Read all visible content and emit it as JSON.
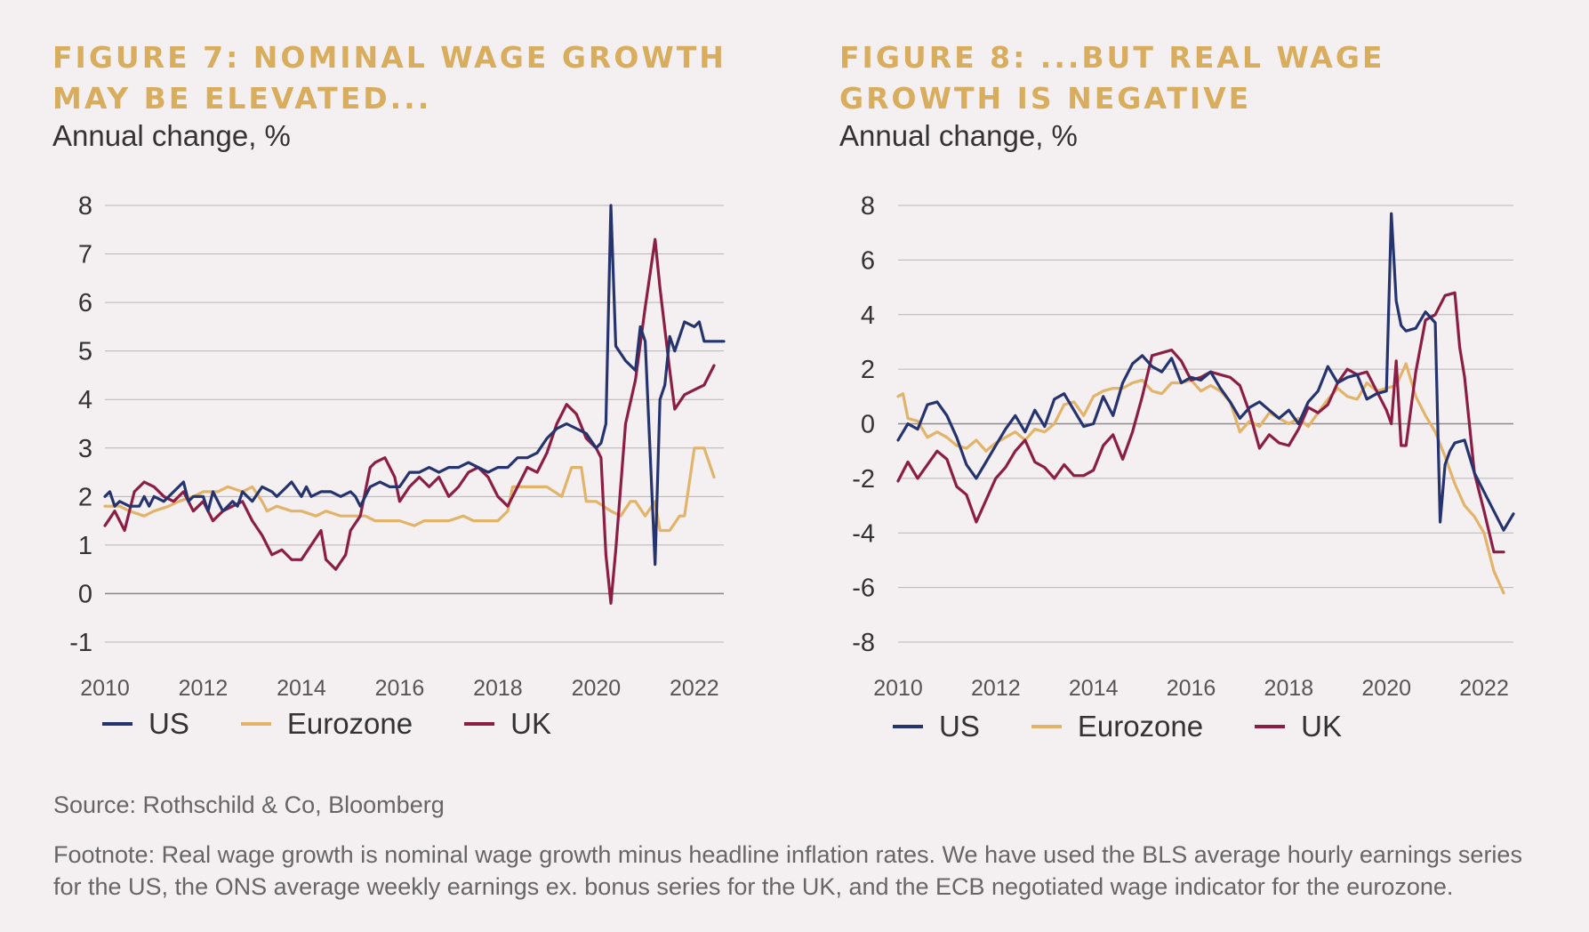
{
  "source": "Source: Rothschild & Co, Bloomberg",
  "footnote": "Footnote: Real wage growth is nominal wage growth minus headline inflation rates. We have used the BLS average hourly earnings series for the US, the ONS average weekly earnings ex. bonus series for the UK, and the ECB negotiated wage indicator for the eurozone.",
  "colors": {
    "US": "#25346e",
    "Eurozone": "#e2b46a",
    "UK": "#8c1d44",
    "grid": "#b9b4b6",
    "title": "#d8ad5e"
  },
  "chart_data": [
    {
      "type": "line",
      "title": "FIGURE 7: NOMINAL WAGE GROWTH MAY BE ELEVATED...",
      "subtitle": "Annual change, %",
      "xlim": [
        2010,
        2022.6
      ],
      "ylim": [
        -1,
        8
      ],
      "yticks": [
        8,
        7,
        6,
        5,
        4,
        3,
        2,
        1,
        0,
        -1
      ],
      "xticks": [
        2010,
        2012,
        2014,
        2016,
        2018,
        2020,
        2022
      ],
      "grid": true,
      "legend": "bottom",
      "series": [
        {
          "name": "US",
          "x": [
            2010,
            2010.1,
            2010.2,
            2010.3,
            2010.5,
            2010.7,
            2010.8,
            2010.9,
            2011,
            2011.2,
            2011.4,
            2011.6,
            2011.7,
            2011.8,
            2012,
            2012.1,
            2012.2,
            2012.4,
            2012.6,
            2012.7,
            2012.8,
            2013,
            2013.2,
            2013.4,
            2013.5,
            2013.6,
            2013.8,
            2014,
            2014.1,
            2014.2,
            2014.4,
            2014.6,
            2014.8,
            2015,
            2015.1,
            2015.2,
            2015.4,
            2015.6,
            2015.8,
            2016,
            2016.2,
            2016.4,
            2016.6,
            2016.8,
            2017,
            2017.2,
            2017.4,
            2017.6,
            2017.8,
            2018,
            2018.2,
            2018.4,
            2018.6,
            2018.8,
            2019,
            2019.2,
            2019.4,
            2019.6,
            2019.8,
            2020,
            2020.1,
            2020.2,
            2020.3,
            2020.4,
            2020.6,
            2020.8,
            2020.9,
            2021,
            2021.2,
            2021.3,
            2021.4,
            2021.5,
            2021.6,
            2021.8,
            2022,
            2022.1,
            2022.2,
            2022.4,
            2022.6
          ],
          "values": [
            2.0,
            2.1,
            1.8,
            1.9,
            1.8,
            1.8,
            2.0,
            1.8,
            2.0,
            1.9,
            2.1,
            2.3,
            1.9,
            2.0,
            2.0,
            1.7,
            2.1,
            1.7,
            1.9,
            1.8,
            2.1,
            1.9,
            2.2,
            2.1,
            2.0,
            2.1,
            2.3,
            2.0,
            2.2,
            2.0,
            2.1,
            2.1,
            2.0,
            2.1,
            2.0,
            1.8,
            2.2,
            2.3,
            2.2,
            2.2,
            2.5,
            2.5,
            2.6,
            2.5,
            2.6,
            2.6,
            2.7,
            2.6,
            2.5,
            2.6,
            2.6,
            2.8,
            2.8,
            2.9,
            3.2,
            3.4,
            3.5,
            3.4,
            3.3,
            3.0,
            3.1,
            3.5,
            8.0,
            5.1,
            4.8,
            4.6,
            5.5,
            5.2,
            0.6,
            4.0,
            4.3,
            5.3,
            5.0,
            5.6,
            5.5,
            5.6,
            5.2,
            5.2,
            5.2
          ]
        },
        {
          "name": "Eurozone",
          "x": [
            2010,
            2010.3,
            2010.5,
            2010.8,
            2011,
            2011.3,
            2011.5,
            2011.8,
            2012,
            2012.3,
            2012.5,
            2012.8,
            2013,
            2013.2,
            2013.3,
            2013.5,
            2013.8,
            2014,
            2014.3,
            2014.5,
            2014.8,
            2015,
            2015.3,
            2015.5,
            2015.8,
            2016,
            2016.3,
            2016.5,
            2016.8,
            2017,
            2017.3,
            2017.5,
            2017.8,
            2018,
            2018.2,
            2018.3,
            2018.5,
            2018.8,
            2019,
            2019.3,
            2019.5,
            2019.7,
            2019.8,
            2020,
            2020.3,
            2020.5,
            2020.7,
            2020.8,
            2021,
            2021.2,
            2021.3,
            2021.5,
            2021.7,
            2021.8,
            2022,
            2022.2,
            2022.4
          ],
          "values": [
            1.8,
            1.8,
            1.7,
            1.6,
            1.7,
            1.8,
            1.9,
            2.0,
            2.1,
            2.1,
            2.2,
            2.1,
            2.2,
            1.9,
            1.7,
            1.8,
            1.7,
            1.7,
            1.6,
            1.7,
            1.6,
            1.6,
            1.6,
            1.5,
            1.5,
            1.5,
            1.4,
            1.5,
            1.5,
            1.5,
            1.6,
            1.5,
            1.5,
            1.5,
            1.7,
            2.2,
            2.2,
            2.2,
            2.2,
            2.0,
            2.6,
            2.6,
            1.9,
            1.9,
            1.7,
            1.6,
            1.9,
            1.9,
            1.6,
            1.9,
            1.3,
            1.3,
            1.6,
            1.6,
            3.0,
            3.0,
            2.4
          ]
        },
        {
          "name": "UK",
          "x": [
            2010,
            2010.2,
            2010.4,
            2010.6,
            2010.8,
            2011,
            2011.2,
            2011.4,
            2011.6,
            2011.8,
            2012,
            2012.2,
            2012.4,
            2012.6,
            2012.8,
            2013,
            2013.2,
            2013.4,
            2013.6,
            2013.8,
            2014,
            2014.2,
            2014.4,
            2014.5,
            2014.7,
            2014.9,
            2015,
            2015.2,
            2015.4,
            2015.5,
            2015.7,
            2015.9,
            2016,
            2016.2,
            2016.4,
            2016.6,
            2016.8,
            2017,
            2017.2,
            2017.4,
            2017.6,
            2017.8,
            2018,
            2018.2,
            2018.4,
            2018.6,
            2018.8,
            2019,
            2019.2,
            2019.4,
            2019.6,
            2019.8,
            2020,
            2020.1,
            2020.2,
            2020.3,
            2020.4,
            2020.6,
            2020.8,
            2021,
            2021.2,
            2021.3,
            2021.5,
            2021.6,
            2021.8,
            2022,
            2022.2,
            2022.4
          ],
          "values": [
            1.4,
            1.7,
            1.3,
            2.1,
            2.3,
            2.2,
            2.0,
            1.9,
            2.1,
            1.7,
            1.9,
            1.5,
            1.7,
            1.8,
            1.9,
            1.5,
            1.2,
            0.8,
            0.9,
            0.7,
            0.7,
            1.0,
            1.3,
            0.7,
            0.5,
            0.8,
            1.3,
            1.6,
            2.6,
            2.7,
            2.8,
            2.4,
            1.9,
            2.2,
            2.4,
            2.2,
            2.4,
            2.0,
            2.2,
            2.5,
            2.6,
            2.4,
            2.0,
            1.8,
            2.2,
            2.6,
            2.5,
            2.9,
            3.5,
            3.9,
            3.7,
            3.2,
            3.0,
            2.8,
            0.8,
            -0.2,
            0.9,
            3.5,
            4.4,
            5.9,
            7.3,
            6.3,
            4.6,
            3.8,
            4.1,
            4.2,
            4.3,
            4.7
          ]
        }
      ]
    },
    {
      "type": "line",
      "title": "FIGURE 8: ...BUT REAL WAGE GROWTH IS NEGATIVE",
      "subtitle": "Annual change, %",
      "xlim": [
        2010,
        2022.6
      ],
      "ylim": [
        -8,
        8
      ],
      "yticks": [
        8,
        6,
        4,
        2,
        0,
        -2,
        -4,
        -6,
        -8
      ],
      "xticks": [
        2010,
        2012,
        2014,
        2016,
        2018,
        2020,
        2022
      ],
      "grid": true,
      "legend": "bottom",
      "series": [
        {
          "name": "US",
          "x": [
            2010,
            2010.2,
            2010.4,
            2010.6,
            2010.8,
            2011,
            2011.2,
            2011.4,
            2011.6,
            2011.8,
            2012,
            2012.2,
            2012.4,
            2012.6,
            2012.8,
            2013,
            2013.2,
            2013.4,
            2013.6,
            2013.8,
            2014,
            2014.2,
            2014.4,
            2014.6,
            2014.8,
            2015,
            2015.2,
            2015.4,
            2015.6,
            2015.8,
            2016,
            2016.2,
            2016.4,
            2016.6,
            2016.8,
            2017,
            2017.2,
            2017.4,
            2017.6,
            2017.8,
            2018,
            2018.2,
            2018.4,
            2018.6,
            2018.8,
            2019,
            2019.2,
            2019.4,
            2019.6,
            2019.8,
            2020,
            2020.1,
            2020.2,
            2020.3,
            2020.4,
            2020.6,
            2020.8,
            2021,
            2021.1,
            2021.2,
            2021.3,
            2021.4,
            2021.6,
            2021.8,
            2022,
            2022.2,
            2022.4,
            2022.6
          ],
          "values": [
            -0.6,
            0.0,
            -0.2,
            0.7,
            0.8,
            0.3,
            -0.5,
            -1.5,
            -2.0,
            -1.4,
            -0.8,
            -0.2,
            0.3,
            -0.3,
            0.5,
            -0.1,
            0.9,
            1.1,
            0.5,
            -0.1,
            0.0,
            1.0,
            0.3,
            1.5,
            2.2,
            2.5,
            2.1,
            1.9,
            2.4,
            1.5,
            1.7,
            1.6,
            1.9,
            1.3,
            0.8,
            0.2,
            0.6,
            0.8,
            0.5,
            0.2,
            0.5,
            0.0,
            0.8,
            1.2,
            2.1,
            1.5,
            1.7,
            1.8,
            0.9,
            1.1,
            1.2,
            7.7,
            4.5,
            3.6,
            3.4,
            3.5,
            4.1,
            3.7,
            -3.6,
            -1.5,
            -1.0,
            -0.7,
            -0.6,
            -1.8,
            -2.5,
            -3.2,
            -3.9,
            -3.3
          ]
        },
        {
          "name": "Eurozone",
          "x": [
            2010,
            2010.1,
            2010.2,
            2010.4,
            2010.6,
            2010.8,
            2011,
            2011.2,
            2011.4,
            2011.6,
            2011.8,
            2012,
            2012.2,
            2012.4,
            2012.6,
            2012.8,
            2013,
            2013.2,
            2013.4,
            2013.6,
            2013.8,
            2014,
            2014.2,
            2014.4,
            2014.6,
            2014.8,
            2015,
            2015.2,
            2015.4,
            2015.6,
            2015.8,
            2016,
            2016.2,
            2016.4,
            2016.6,
            2016.8,
            2017,
            2017.2,
            2017.4,
            2017.6,
            2017.8,
            2018,
            2018.2,
            2018.4,
            2018.6,
            2018.8,
            2019,
            2019.2,
            2019.4,
            2019.6,
            2019.8,
            2020,
            2020.2,
            2020.4,
            2020.6,
            2020.8,
            2021,
            2021.2,
            2021.4,
            2021.6,
            2021.8,
            2022,
            2022.2,
            2022.4
          ],
          "values": [
            1.0,
            1.1,
            0.2,
            0.1,
            -0.5,
            -0.3,
            -0.5,
            -0.8,
            -0.9,
            -0.6,
            -1.0,
            -0.7,
            -0.5,
            -0.3,
            -0.6,
            -0.2,
            -0.3,
            0.0,
            0.7,
            0.8,
            0.3,
            1.0,
            1.2,
            1.3,
            1.3,
            1.5,
            1.6,
            1.2,
            1.1,
            1.5,
            1.5,
            1.6,
            1.2,
            1.4,
            1.2,
            0.8,
            -0.3,
            0.1,
            -0.1,
            0.4,
            0.2,
            0.0,
            0.2,
            -0.1,
            0.4,
            0.9,
            1.3,
            1.0,
            0.9,
            1.5,
            1.2,
            1.3,
            1.4,
            2.2,
            1.0,
            0.3,
            -0.3,
            -1.2,
            -2.2,
            -3.0,
            -3.4,
            -4.0,
            -5.4,
            -6.2
          ]
        },
        {
          "name": "UK",
          "x": [
            2010,
            2010.2,
            2010.4,
            2010.6,
            2010.8,
            2011,
            2011.2,
            2011.4,
            2011.6,
            2011.8,
            2012,
            2012.2,
            2012.4,
            2012.6,
            2012.8,
            2013,
            2013.2,
            2013.4,
            2013.6,
            2013.8,
            2014,
            2014.2,
            2014.4,
            2014.6,
            2014.8,
            2015,
            2015.2,
            2015.4,
            2015.6,
            2015.8,
            2016,
            2016.2,
            2016.4,
            2016.6,
            2016.8,
            2017,
            2017.2,
            2017.4,
            2017.6,
            2017.8,
            2018,
            2018.2,
            2018.4,
            2018.6,
            2018.8,
            2019,
            2019.2,
            2019.4,
            2019.6,
            2019.8,
            2020,
            2020.1,
            2020.2,
            2020.3,
            2020.4,
            2020.6,
            2020.8,
            2021,
            2021.2,
            2021.4,
            2021.5,
            2021.6,
            2021.8,
            2022,
            2022.2,
            2022.4
          ],
          "values": [
            -2.1,
            -1.4,
            -2.0,
            -1.5,
            -1.0,
            -1.3,
            -2.3,
            -2.6,
            -3.6,
            -2.8,
            -2.0,
            -1.6,
            -1.0,
            -0.6,
            -1.4,
            -1.6,
            -2.0,
            -1.5,
            -1.9,
            -1.9,
            -1.7,
            -0.8,
            -0.4,
            -1.3,
            -0.3,
            1.0,
            2.5,
            2.6,
            2.7,
            2.3,
            1.6,
            1.7,
            1.9,
            1.8,
            1.7,
            1.4,
            0.4,
            -0.9,
            -0.4,
            -0.7,
            -0.8,
            -0.2,
            0.6,
            0.4,
            0.7,
            1.5,
            2.0,
            1.8,
            1.9,
            1.2,
            0.5,
            0.0,
            2.3,
            -0.8,
            -0.8,
            1.9,
            3.8,
            4.0,
            4.7,
            4.8,
            2.8,
            1.7,
            -1.8,
            -3.2,
            -4.7,
            -4.7
          ]
        }
      ]
    }
  ]
}
